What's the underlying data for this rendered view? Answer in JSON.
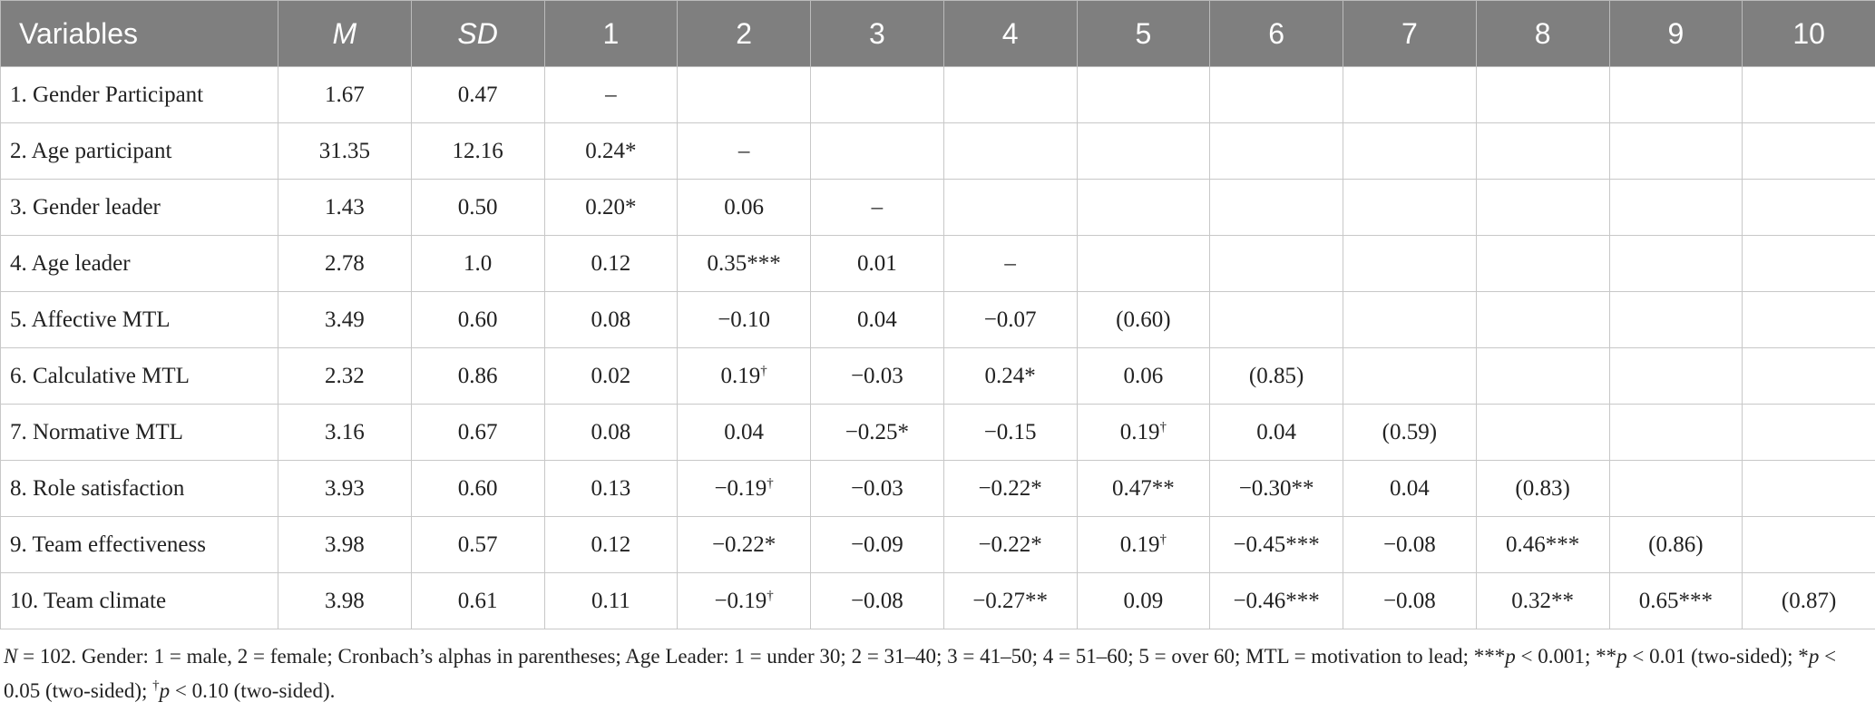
{
  "table": {
    "header": [
      "Variables",
      "M",
      "SD",
      "1",
      "2",
      "3",
      "4",
      "5",
      "6",
      "7",
      "8",
      "9",
      "10"
    ],
    "italic_columns": [
      1,
      2
    ],
    "rows": [
      [
        "1. Gender Participant",
        "1.67",
        "0.47",
        "–"
      ],
      [
        "2. Age participant",
        "31.35",
        "12.16",
        "0.24*",
        "–"
      ],
      [
        "3. Gender leader",
        "1.43",
        "0.50",
        "0.20*",
        "0.06",
        "–"
      ],
      [
        "4. Age leader",
        "2.78",
        "1.0",
        "0.12",
        "0.35***",
        "0.01",
        "–"
      ],
      [
        "5. Affective MTL",
        "3.49",
        "0.60",
        "0.08",
        "−0.10",
        "0.04",
        "−0.07",
        "(0.60)"
      ],
      [
        "6. Calculative MTL",
        "2.32",
        "0.86",
        "0.02",
        "0.19†",
        "−0.03",
        "0.24*",
        "0.06",
        "(0.85)"
      ],
      [
        "7. Normative MTL",
        "3.16",
        "0.67",
        "0.08",
        "0.04",
        "−0.25*",
        "−0.15",
        "0.19†",
        "0.04",
        "(0.59)"
      ],
      [
        "8. Role satisfaction",
        "3.93",
        "0.60",
        "0.13",
        "−0.19†",
        "−0.03",
        "−0.22*",
        "0.47**",
        "−0.30**",
        "0.04",
        "(0.83)"
      ],
      [
        "9. Team effectiveness",
        "3.98",
        "0.57",
        "0.12",
        "−0.22*",
        "−0.09",
        "−0.22*",
        "0.19†",
        "−0.45***",
        "−0.08",
        "0.46***",
        "(0.86)"
      ],
      [
        "10. Team climate",
        "3.98",
        "0.61",
        "0.11",
        "−0.19†",
        "−0.08",
        "−0.27**",
        "0.09",
        "−0.46***",
        "−0.08",
        "0.32**",
        "0.65***",
        "(0.87)"
      ]
    ]
  },
  "footnote": [
    {
      "text": "N",
      "style": "italic"
    },
    {
      "text": " = 102. Gender: 1 = male, 2 = female; Cronbach’s alphas in parentheses; Age Leader: 1 = under 30; 2 = 31–40; 3 = 41–50; 4 = 51–60; 5 = over 60; MTL = motivation to lead; ***",
      "style": "normal"
    },
    {
      "text": "p",
      "style": "italic"
    },
    {
      "text": " < 0.001; **",
      "style": "normal"
    },
    {
      "text": "p",
      "style": "italic"
    },
    {
      "text": " < 0.01 (two-sided); *",
      "style": "normal"
    },
    {
      "text": "p",
      "style": "italic"
    },
    {
      "text": " < 0.05 (two-sided); ",
      "style": "normal"
    },
    {
      "text": "†",
      "style": "sup"
    },
    {
      "text": "p",
      "style": "italic"
    },
    {
      "text": " < 0.10 (two-sided).",
      "style": "normal"
    }
  ]
}
